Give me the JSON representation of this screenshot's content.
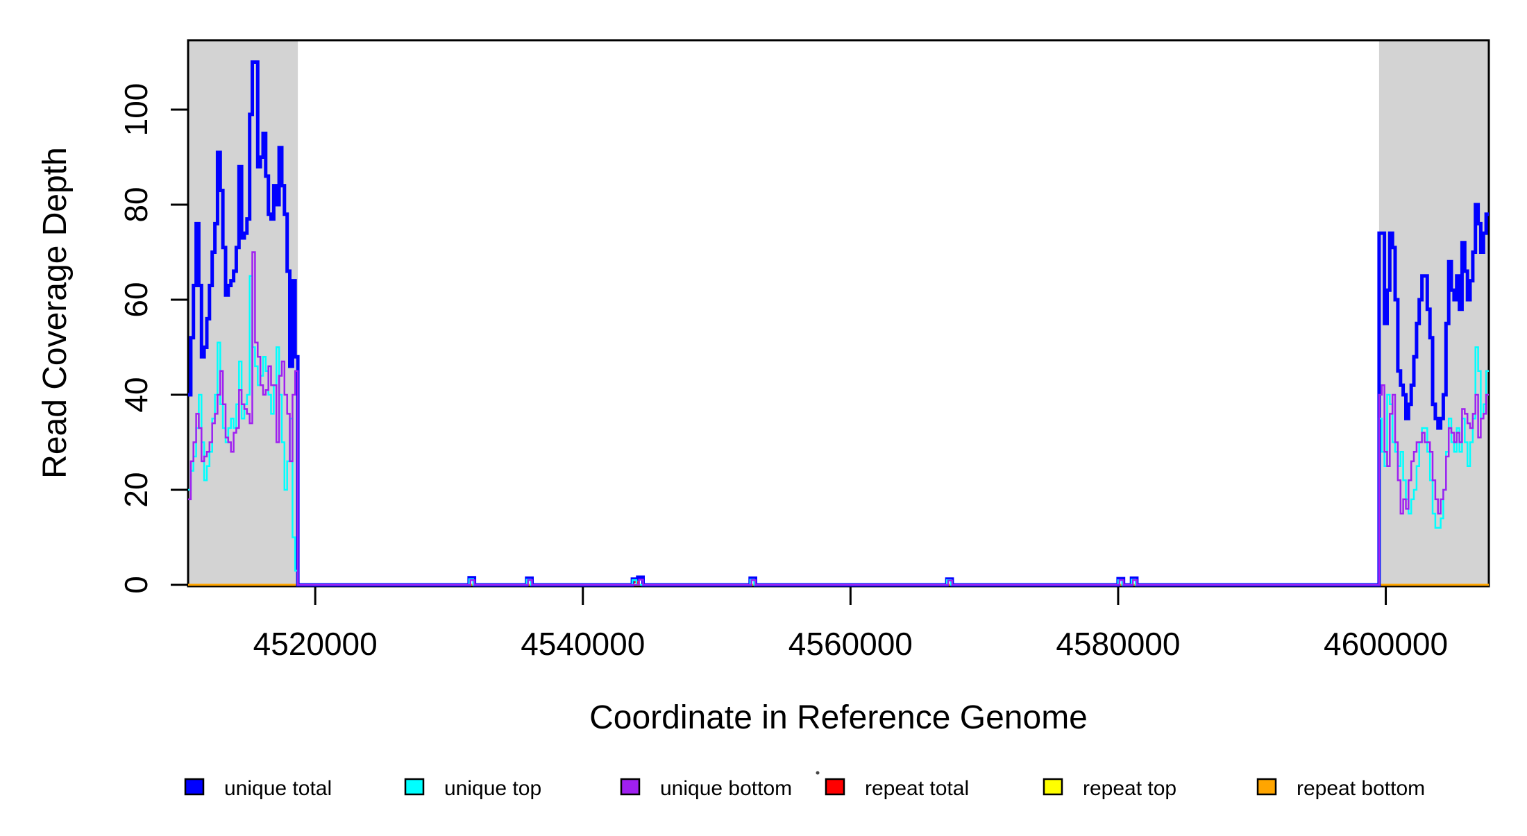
{
  "figure": {
    "background": "#FFFFFF",
    "plot_background": "#FFFFFF"
  },
  "chart_data": {
    "type": "line",
    "subtype": "step-coverage",
    "title": "",
    "xlabel": "Coordinate in Reference Genome",
    "ylabel": "Read Coverage Depth",
    "xlim": [
      4510500,
      4607700
    ],
    "ylim": [
      0,
      114.6
    ],
    "grid": false,
    "xticks": {
      "values": [
        4520000,
        4540000,
        4560000,
        4580000,
        4600000
      ],
      "labels": [
        "4520000",
        "4540000",
        "4560000",
        "4580000",
        "4600000"
      ]
    },
    "yticks": {
      "values": [
        0,
        20,
        40,
        60,
        80,
        100
      ],
      "labels": [
        "0",
        "20",
        "40",
        "60",
        "80",
        "100"
      ]
    },
    "masked_regions": [
      {
        "from": 4510500,
        "to": 4518700,
        "color": "#D3D3D3"
      },
      {
        "from": 4599500,
        "to": 4607700,
        "color": "#D3D3D3"
      }
    ],
    "series": [
      {
        "name": "unique total",
        "color": "#0000FF",
        "line_width": 5,
        "draw_order": 4,
        "segments": [
          {
            "x0": 4510500,
            "dx": 200,
            "values": [
              40,
              52,
              63,
              76,
              63,
              48,
              50,
              56,
              63,
              70,
              76,
              91,
              83,
              71,
              61,
              63,
              64,
              66,
              71,
              88,
              73,
              74,
              77,
              99,
              110,
              110,
              88,
              90,
              95,
              86,
              78,
              77,
              84,
              80,
              92,
              84,
              78,
              66,
              46,
              64,
              48
            ]
          },
          {
            "points": [
              [
                4518700,
                0
              ],
              [
                4531500,
                1.5
              ],
              [
                4531900,
                0
              ],
              [
                4535800,
                1.4
              ],
              [
                4536200,
                0
              ],
              [
                4543700,
                1.2
              ],
              [
                4544100,
                1.6
              ],
              [
                4544500,
                0
              ],
              [
                4552500,
                1.4
              ],
              [
                4552900,
                0
              ],
              [
                4567200,
                1.2
              ],
              [
                4567600,
                0
              ],
              [
                4580000,
                1.3
              ],
              [
                4580400,
                0
              ],
              [
                4581000,
                1.4
              ],
              [
                4581400,
                0
              ]
            ]
          },
          {
            "x0": 4599500,
            "dx": 200,
            "values": [
              74,
              74,
              55,
              62,
              74,
              71,
              60,
              45,
              42,
              40,
              35,
              38,
              42,
              48,
              55,
              60,
              65,
              65,
              58,
              52,
              38,
              35,
              33,
              35,
              40,
              55,
              68,
              62,
              60,
              65,
              58,
              72,
              66,
              60,
              64,
              70,
              80,
              76,
              70,
              74,
              78
            ]
          }
        ]
      },
      {
        "name": "unique top",
        "color": "#00FFFF",
        "line_width": 2.5,
        "draw_order": 5,
        "segments": [
          {
            "x0": 4510500,
            "dx": 200,
            "values": [
              20,
              24,
              27,
              33,
              40,
              30,
              22,
              25,
              28,
              35,
              40,
              51,
              38,
              33,
              30,
              33,
              35,
              33,
              38,
              47,
              35,
              38,
              40,
              65,
              50,
              46,
              42,
              44,
              48,
              45,
              40,
              36,
              42,
              50,
              40,
              30,
              20,
              26,
              35,
              10,
              3
            ]
          },
          {
            "points": [
              [
                4518700,
                0
              ],
              [
                4531500,
                1.2
              ],
              [
                4531800,
                0
              ],
              [
                4535800,
                1.1
              ],
              [
                4536100,
                0
              ],
              [
                4543700,
                1.0
              ],
              [
                4544000,
                0
              ],
              [
                4552500,
                1.1
              ],
              [
                4552800,
                0
              ],
              [
                4567200,
                1.0
              ],
              [
                4567500,
                0
              ],
              [
                4580000,
                1.0
              ],
              [
                4580300,
                0
              ],
              [
                4581000,
                1.1
              ],
              [
                4581300,
                0
              ]
            ]
          },
          {
            "x0": 4599500,
            "dx": 200,
            "values": [
              35,
              28,
              25,
              40,
              38,
              30,
              28,
              25,
              28,
              22,
              18,
              15,
              18,
              20,
              25,
              30,
              33,
              33,
              28,
              22,
              15,
              12,
              12,
              14,
              20,
              28,
              35,
              30,
              28,
              33,
              28,
              35,
              30,
              25,
              30,
              35,
              50,
              45,
              35,
              38,
              45
            ]
          }
        ]
      },
      {
        "name": "unique bottom",
        "color": "#A020F0",
        "line_width": 2.5,
        "draw_order": 6,
        "segments": [
          {
            "x0": 4510500,
            "dx": 200,
            "values": [
              18,
              26,
              30,
              36,
              33,
              26,
              27,
              28,
              30,
              34,
              36,
              40,
              45,
              38,
              31,
              30,
              28,
              32,
              33,
              41,
              38,
              37,
              36,
              34,
              70,
              51,
              48,
              42,
              40,
              41,
              46,
              42,
              42,
              30,
              44,
              47,
              40,
              36,
              26,
              40,
              45
            ]
          },
          {
            "points": [
              [
                4518700,
                0
              ],
              [
                4531600,
                1.0
              ],
              [
                4531900,
                0
              ],
              [
                4535900,
                1.0
              ],
              [
                4536200,
                0
              ],
              [
                4544200,
                1.1
              ],
              [
                4544500,
                0
              ],
              [
                4552600,
                1.0
              ],
              [
                4552900,
                0
              ],
              [
                4567300,
                0.9
              ],
              [
                4567600,
                0
              ],
              [
                4580100,
                1.0
              ],
              [
                4580400,
                0
              ],
              [
                4581100,
                1.0
              ],
              [
                4581400,
                0
              ]
            ]
          },
          {
            "x0": 4599500,
            "dx": 200,
            "values": [
              40,
              42,
              28,
              25,
              36,
              40,
              30,
              22,
              15,
              18,
              16,
              22,
              26,
              28,
              30,
              30,
              32,
              30,
              30,
              28,
              22,
              18,
              15,
              18,
              20,
              27,
              33,
              32,
              30,
              32,
              30,
              37,
              36,
              34,
              33,
              36,
              40,
              31,
              35,
              36,
              40
            ]
          }
        ]
      },
      {
        "name": "repeat total",
        "color": "#FF0000",
        "line_width": 2.5,
        "draw_order": 1,
        "segments": [
          {
            "points": [
              [
                4510500,
                0
              ],
              [
                4543800,
                0.6
              ],
              [
                4544100,
                0
              ]
            ]
          }
        ]
      },
      {
        "name": "repeat top",
        "color": "#FFFF00",
        "line_width": 2.5,
        "draw_order": 2,
        "segments": [
          {
            "points": [
              [
                4510500,
                0
              ]
            ]
          }
        ]
      },
      {
        "name": "repeat bottom",
        "color": "#FFA500",
        "line_width": 3,
        "draw_order": 3,
        "segments": [
          {
            "points": [
              [
                4510500,
                0
              ]
            ]
          }
        ]
      }
    ]
  },
  "legend": {
    "items": [
      {
        "label": "unique total",
        "color": "#0000FF"
      },
      {
        "label": "unique top",
        "color": "#00FFFF"
      },
      {
        "label": "unique bottom",
        "color": "#A020F0"
      },
      {
        "label": "repeat total",
        "color": "#FF0000"
      },
      {
        "label": "repeat top",
        "color": "#FFFF00"
      },
      {
        "label": "repeat bottom",
        "color": "#FFA500"
      }
    ]
  }
}
